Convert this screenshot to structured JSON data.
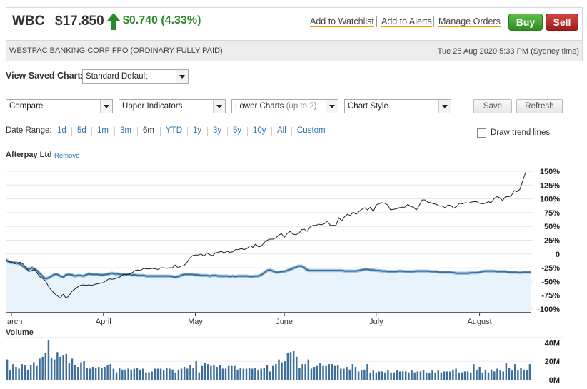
{
  "header": {
    "ticker": "WBC",
    "price": "$17.850",
    "change": "$0.740 (4.33%)",
    "links": [
      "Add to Watchlist",
      "Add to Alerts",
      "Manage Orders"
    ],
    "buy_label": "Buy",
    "sell_label": "Sell",
    "company": "WESTPAC BANKING CORP FPO (ORDINARY FULLY PAID)",
    "timestamp": "Tue 25 Aug 2020 5:33 PM (Sydney time)"
  },
  "saved_chart": {
    "label": "View Saved Chart:",
    "value": "Standard Default"
  },
  "toolbar": {
    "compare": "Compare",
    "upper": "Upper Indicators",
    "lower": "Lower Charts",
    "lower_hint": "(up to 2)",
    "style": "Chart Style",
    "save": "Save",
    "refresh": "Refresh"
  },
  "date_range": {
    "label": "Date Range:",
    "options": [
      "1d",
      "5d",
      "1m",
      "3m",
      "6m",
      "YTD",
      "1y",
      "3y",
      "5y",
      "10y",
      "All",
      "Custom"
    ],
    "active": "6m"
  },
  "trend_lines_label": "Draw trend lines",
  "compare_series": {
    "name": "Afterpay Ltd",
    "remove": "Remove"
  },
  "colors": {
    "wbc_line": "#3e6e9a",
    "wbc_fill": "#e8f3fb",
    "compare_line": "#222222",
    "volume_bar": "#3e6e9a",
    "up": "#2a8a2a"
  },
  "chart_data": [
    {
      "type": "line",
      "y_unit": "% change",
      "ylim": [
        -100,
        150
      ],
      "y_ticks": [
        "150%",
        "125%",
        "100%",
        "75%",
        "50%",
        "25%",
        "0",
        "-25%",
        "-50%",
        "-75%",
        "-100%"
      ],
      "x_ticks": [
        "March",
        "April",
        "May",
        "June",
        "July",
        "August"
      ],
      "x_tick_idx": [
        2,
        34,
        66,
        97,
        129,
        165
      ],
      "series": [
        {
          "name": "WBC",
          "values": [
            -10,
            -14,
            -16,
            -15,
            -17,
            -18,
            -22,
            -26,
            -28,
            -25,
            -27,
            -31,
            -36,
            -42,
            -45,
            -43,
            -40,
            -37,
            -37,
            -40,
            -42,
            -38,
            -37,
            -38,
            -40,
            -39,
            -39,
            -40,
            -38,
            -36,
            -37,
            -37,
            -37,
            -38,
            -38,
            -37,
            -36,
            -35,
            -36,
            -36,
            -37,
            -37,
            -37,
            -37,
            -38,
            -38,
            -39,
            -39,
            -39,
            -40,
            -40,
            -40,
            -40,
            -40,
            -40,
            -40,
            -40,
            -40,
            -41,
            -42,
            -41,
            -39,
            -37,
            -37,
            -37,
            -37,
            -38,
            -38,
            -39,
            -39,
            -39,
            -40,
            -39,
            -39,
            -40,
            -40,
            -40,
            -40,
            -41,
            -40,
            -41,
            -40,
            -40,
            -40,
            -40,
            -41,
            -41,
            -40,
            -40,
            -38,
            -34,
            -30,
            -29,
            -31,
            -33,
            -33,
            -32,
            -32,
            -30,
            -28,
            -26,
            -24,
            -22,
            -22,
            -25,
            -29,
            -30,
            -30,
            -30,
            -30,
            -30,
            -30,
            -30,
            -30,
            -30,
            -30,
            -30,
            -30,
            -31,
            -31,
            -31,
            -31,
            -31,
            -30,
            -29,
            -28,
            -28,
            -29,
            -29,
            -30,
            -30,
            -31,
            -31,
            -32,
            -32,
            -32,
            -32,
            -31,
            -31,
            -32,
            -32,
            -32,
            -32,
            -31,
            -31,
            -31,
            -31,
            -31,
            -32,
            -32,
            -32,
            -33,
            -33,
            -33,
            -33,
            -33,
            -34,
            -35,
            -35,
            -35,
            -35,
            -35,
            -34,
            -34,
            -34,
            -33,
            -32,
            -31,
            -31,
            -31,
            -31,
            -32,
            -32,
            -32,
            -32,
            -33,
            -33,
            -33,
            -33,
            -34,
            -33,
            -33,
            -33,
            -33
          ]
        },
        {
          "name": "Afterpay Ltd",
          "values": [
            -10,
            -14,
            -14,
            -18,
            -16,
            -15,
            -18,
            -24,
            -32,
            -30,
            -28,
            -35,
            -42,
            -45,
            -50,
            -60,
            -66,
            -72,
            -76,
            -80,
            -73,
            -80,
            -76,
            -68,
            -64,
            -60,
            -57,
            -56,
            -57,
            -56,
            -57,
            -55,
            -54,
            -53,
            -52,
            -48,
            -45,
            -46,
            -45,
            -43,
            -41,
            -37,
            -38,
            -36,
            -34,
            -30,
            -29,
            -30,
            -26,
            -27,
            -27,
            -26,
            -27,
            -28,
            -25,
            -25,
            -26,
            -25,
            -25,
            -20,
            -25,
            -22,
            -21,
            -16,
            -8,
            -3,
            -2,
            -2,
            0,
            -4,
            2,
            -1,
            -3,
            2,
            3,
            5,
            2,
            5,
            3,
            4,
            8,
            8,
            10,
            8,
            10,
            15,
            12,
            18,
            13,
            14,
            21,
            25,
            27,
            27,
            29,
            34,
            37,
            30,
            37,
            41,
            36,
            35,
            37,
            44,
            45,
            41,
            49,
            52,
            52,
            54,
            53,
            55,
            60,
            52,
            52,
            52,
            66,
            60,
            68,
            72,
            70,
            76,
            72,
            77,
            81,
            84,
            80,
            85,
            77,
            89,
            91,
            93,
            92,
            89,
            80,
            81,
            82,
            84,
            85,
            85,
            90,
            86,
            85,
            80,
            88,
            98,
            98,
            94,
            93,
            91,
            90,
            87,
            87,
            84,
            89,
            88,
            83,
            86,
            92,
            91,
            93,
            92,
            94,
            95,
            95,
            92,
            91,
            92,
            95,
            93,
            100,
            104,
            102,
            97,
            104,
            104,
            105,
            115,
            113,
            117,
            132,
            148
          ]
        }
      ]
    },
    {
      "type": "bar",
      "title": "Volume",
      "y_ticks": [
        "40M",
        "20M",
        "0M"
      ],
      "ylim": [
        0,
        45
      ],
      "values": [
        22,
        10,
        17,
        14,
        12,
        17,
        16,
        11,
        16,
        19,
        15,
        23,
        25,
        29,
        43,
        24,
        22,
        30,
        25,
        27,
        28,
        18,
        23,
        16,
        14,
        19,
        20,
        13,
        12,
        14,
        13,
        14,
        13,
        14,
        16,
        17,
        12,
        8,
        13,
        11,
        11,
        12,
        11,
        12,
        13,
        11,
        12,
        8,
        8,
        9,
        12,
        12,
        12,
        10,
        13,
        12,
        11,
        8,
        11,
        12,
        14,
        12,
        16,
        13,
        20,
        8,
        15,
        18,
        17,
        15,
        16,
        14,
        16,
        12,
        12,
        15,
        15,
        15,
        11,
        13,
        12,
        12,
        13,
        12,
        13,
        11,
        12,
        13,
        16,
        9,
        15,
        17,
        22,
        19,
        20,
        29,
        30,
        31,
        25,
        13,
        17,
        17,
        22,
        12,
        14,
        15,
        18,
        15,
        15,
        17,
        17,
        15,
        16,
        12,
        12,
        14,
        11,
        17,
        14,
        9,
        10,
        11,
        17,
        8,
        10,
        8,
        9,
        9,
        8,
        10,
        8,
        8,
        10,
        9,
        9,
        9,
        8,
        10,
        8,
        9,
        9,
        10,
        8,
        7,
        10,
        8,
        10,
        8,
        9,
        9,
        9,
        11,
        12,
        8,
        8,
        9,
        9,
        8,
        17,
        10,
        14,
        8,
        11,
        8,
        11,
        9,
        12,
        10,
        9,
        18,
        13,
        10,
        17,
        10,
        13,
        11,
        10,
        17
      ]
    }
  ]
}
